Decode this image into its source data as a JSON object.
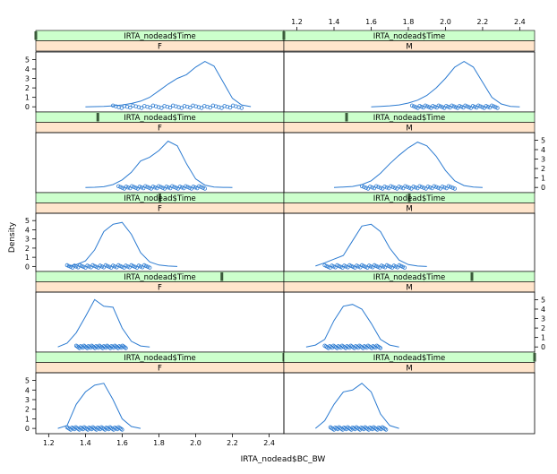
{
  "chart_data": {
    "type": "density",
    "xlabel": "IRTA_nodead$BC_BW",
    "ylabel": "Density",
    "x_ticks": [
      1.2,
      1.4,
      1.6,
      1.8,
      2.0,
      2.2,
      2.4
    ],
    "x_tick_labels": [
      "1.2",
      "1.4",
      "1.6",
      "1.8",
      "2.0",
      "2.2",
      "2.4"
    ],
    "y_ticks": [
      0,
      1,
      2,
      3,
      4,
      5
    ],
    "y_tick_labels": [
      "0",
      "1",
      "2",
      "3",
      "4",
      "5"
    ],
    "xlim": [
      1.13,
      2.48
    ],
    "ylim": [
      -0.55,
      5.8
    ],
    "strip_top_label": "IRTA_nodead$Time",
    "series_color": "#2c7bd1",
    "strip_top_color": "#ccffcc",
    "strip_bottom_color": "#ffe5cc",
    "panels": [
      {
        "row": 0,
        "col": 0,
        "sex": "F",
        "time_level": 1,
        "density": {
          "x": [
            1.4,
            1.45,
            1.5,
            1.55,
            1.6,
            1.65,
            1.7,
            1.75,
            1.8,
            1.85,
            1.9,
            1.95,
            2.0,
            2.05,
            2.1,
            2.15,
            2.2,
            2.25,
            2.3
          ],
          "y": [
            0.0,
            0.02,
            0.05,
            0.1,
            0.2,
            0.35,
            0.6,
            1.0,
            1.7,
            2.4,
            3.0,
            3.4,
            4.2,
            4.8,
            4.3,
            2.6,
            0.9,
            0.2,
            0.02
          ]
        },
        "rug": {
          "from": 1.55,
          "to": 2.25
        }
      },
      {
        "row": 0,
        "col": 1,
        "sex": "M",
        "time_level": 1,
        "density": {
          "x": [
            1.6,
            1.65,
            1.7,
            1.75,
            1.8,
            1.85,
            1.9,
            1.95,
            2.0,
            2.05,
            2.1,
            2.15,
            2.2,
            2.25,
            2.3,
            2.35,
            2.4
          ],
          "y": [
            0.0,
            0.05,
            0.1,
            0.2,
            0.4,
            0.7,
            1.2,
            2.0,
            3.0,
            4.2,
            4.8,
            4.2,
            2.6,
            1.0,
            0.3,
            0.05,
            0.0
          ]
        },
        "rug": {
          "from": 1.82,
          "to": 2.28
        }
      },
      {
        "row": 1,
        "col": 0,
        "sex": "F",
        "time_level": 2,
        "density": {
          "x": [
            1.4,
            1.45,
            1.5,
            1.55,
            1.6,
            1.65,
            1.7,
            1.75,
            1.8,
            1.85,
            1.9,
            1.95,
            2.0,
            2.05,
            2.1,
            2.15,
            2.2
          ],
          "y": [
            0.0,
            0.02,
            0.08,
            0.3,
            0.8,
            1.6,
            2.8,
            3.2,
            3.9,
            4.9,
            4.4,
            2.5,
            0.9,
            0.25,
            0.05,
            0.01,
            0.0
          ]
        },
        "rug": {
          "from": 1.58,
          "to": 2.05
        }
      },
      {
        "row": 1,
        "col": 1,
        "sex": "M",
        "time_level": 2,
        "density": {
          "x": [
            1.4,
            1.45,
            1.5,
            1.55,
            1.6,
            1.65,
            1.7,
            1.75,
            1.8,
            1.85,
            1.9,
            1.95,
            2.0,
            2.05,
            2.1,
            2.15,
            2.2
          ],
          "y": [
            0.0,
            0.05,
            0.1,
            0.3,
            0.7,
            1.5,
            2.5,
            3.4,
            4.2,
            4.8,
            4.4,
            3.3,
            1.8,
            0.7,
            0.2,
            0.05,
            0.0
          ]
        },
        "rug": {
          "from": 1.55,
          "to": 2.05
        }
      },
      {
        "row": 2,
        "col": 0,
        "sex": "F",
        "time_level": 3,
        "density": {
          "x": [
            1.3,
            1.35,
            1.4,
            1.45,
            1.5,
            1.55,
            1.6,
            1.65,
            1.7,
            1.75,
            1.8,
            1.85,
            1.9
          ],
          "y": [
            0.02,
            0.2,
            0.6,
            1.8,
            3.8,
            4.6,
            4.8,
            3.5,
            1.5,
            0.5,
            0.15,
            0.05,
            0.0
          ]
        },
        "rug": {
          "from": 1.3,
          "to": 1.75
        }
      },
      {
        "row": 2,
        "col": 1,
        "sex": "M",
        "time_level": 3,
        "density": {
          "x": [
            1.3,
            1.35,
            1.4,
            1.45,
            1.5,
            1.55,
            1.6,
            1.65,
            1.7,
            1.75,
            1.8,
            1.85,
            1.9
          ],
          "y": [
            0.05,
            0.4,
            0.8,
            1.2,
            2.8,
            4.4,
            4.6,
            3.8,
            2.0,
            0.7,
            0.2,
            0.05,
            0.0
          ]
        },
        "rug": {
          "from": 1.35,
          "to": 1.78
        }
      },
      {
        "row": 3,
        "col": 0,
        "sex": "F",
        "time_level": 4,
        "density": {
          "x": [
            1.25,
            1.3,
            1.35,
            1.4,
            1.45,
            1.5,
            1.55,
            1.6,
            1.65,
            1.7,
            1.75
          ],
          "y": [
            0.0,
            0.4,
            1.5,
            3.2,
            5.0,
            4.3,
            4.2,
            2.0,
            0.6,
            0.1,
            0.0
          ]
        },
        "rug": {
          "from": 1.35,
          "to": 1.62
        }
      },
      {
        "row": 3,
        "col": 1,
        "sex": "M",
        "time_level": 4,
        "density": {
          "x": [
            1.25,
            1.3,
            1.35,
            1.4,
            1.45,
            1.5,
            1.55,
            1.6,
            1.65,
            1.7,
            1.75
          ],
          "y": [
            0.0,
            0.2,
            0.8,
            2.8,
            4.3,
            4.5,
            4.0,
            2.5,
            0.8,
            0.2,
            0.0
          ]
        },
        "rug": {
          "from": 1.35,
          "to": 1.65
        }
      },
      {
        "row": 4,
        "col": 0,
        "sex": "F",
        "time_level": 5,
        "density": {
          "x": [
            1.25,
            1.3,
            1.35,
            1.4,
            1.45,
            1.5,
            1.55,
            1.6,
            1.65,
            1.7
          ],
          "y": [
            0.0,
            0.3,
            2.5,
            3.8,
            4.5,
            4.7,
            3.0,
            1.0,
            0.2,
            0.0
          ]
        },
        "rug": {
          "from": 1.3,
          "to": 1.6
        }
      },
      {
        "row": 4,
        "col": 1,
        "sex": "M",
        "time_level": 5,
        "density": {
          "x": [
            1.3,
            1.35,
            1.4,
            1.45,
            1.5,
            1.55,
            1.6,
            1.65,
            1.7,
            1.75
          ],
          "y": [
            0.0,
            0.8,
            2.5,
            3.8,
            4.0,
            4.7,
            3.8,
            1.5,
            0.3,
            0.0
          ]
        },
        "rug": {
          "from": 1.38,
          "to": 1.68
        }
      }
    ]
  }
}
